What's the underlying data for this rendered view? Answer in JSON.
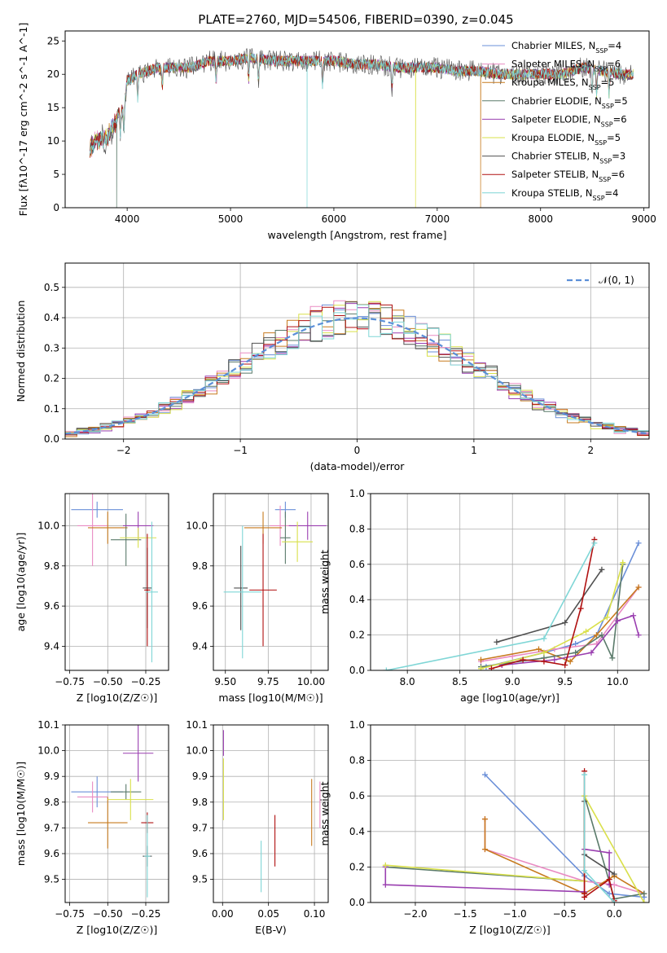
{
  "figure": {
    "title": "PLATE=2760, MJD=54506, FIBERID=0390, z=0.045"
  },
  "series_names": [
    "Chabrier MILES, N$_{SSP}$=4",
    "Salpeter MILES, N$_{SSP}$=6",
    "Kroupa MILES, N$_{SSP}$=5",
    "Chabrier ELODIE, N$_{SSP}$=5",
    "Salpeter ELODIE, N$_{SSP}$=6",
    "Kroupa ELODIE, N$_{SSP}$=5",
    "Chabrier STELIB, N$_{SSP}$=3",
    "Salpeter STELIB, N$_{SSP}$=6",
    "Kroupa STELIB, N$_{SSP}$=4"
  ],
  "colors": [
    "#6a8fd8",
    "#e98bc3",
    "#c77a1e",
    "#5a7a6a",
    "#9a3fb0",
    "#d9e04a",
    "#505050",
    "#b01010",
    "#7fd6d6"
  ],
  "chart_data": [
    {
      "id": "spectrum",
      "type": "line",
      "xlabel": "wavelength [Angstrom, rest frame]",
      "ylabel": "Flux [f$_\\lambda$10$^{-17}$ erg cm$^{-2}$ s$^{-1}$ A$^{-1}$]",
      "xlim": [
        3400,
        9050
      ],
      "ylim": [
        0,
        26.5
      ],
      "xticks": [
        4000,
        5000,
        6000,
        7000,
        8000,
        9000
      ],
      "yticks": [
        0,
        5,
        10,
        15,
        20,
        25
      ],
      "legend": "top-right",
      "grid": false,
      "continuum": {
        "x": [
          3640,
          3700,
          3800,
          3900,
          3970,
          4000,
          4050,
          4100,
          4200,
          4300,
          4400,
          4500,
          4600,
          4700,
          4800,
          4900,
          5000,
          5200,
          5400,
          5600,
          5800,
          6000,
          6200,
          6400,
          6600,
          6800,
          7000,
          7200,
          7400,
          7600,
          7800,
          8000,
          8200,
          8400,
          8600,
          8800,
          8900
        ],
        "y": [
          10,
          11,
          11.5,
          14,
          15,
          19,
          19.5,
          20,
          20.5,
          21,
          21,
          21,
          21,
          21.5,
          22,
          22,
          22,
          22.5,
          22,
          22,
          22,
          22,
          21.5,
          21.5,
          21,
          21,
          21,
          20.5,
          20.5,
          20,
          20,
          20,
          20,
          21,
          20.5,
          20,
          20
        ]
      },
      "absorption_lines": [
        3934,
        3969,
        4102,
        4340,
        4861,
        5175,
        5270,
        5890,
        6563,
        8498,
        8542,
        8662
      ],
      "dropouts": [
        {
          "x": 3900,
          "series": 3,
          "to": 0
        },
        {
          "x": 5740,
          "series": 8,
          "to": 0
        },
        {
          "x": 6790,
          "series": 5,
          "to": 0
        },
        {
          "x": 7420,
          "series": 2,
          "to": 0
        }
      ]
    },
    {
      "id": "residuals",
      "type": "histogram",
      "xlabel": "(data-model)/error",
      "ylabel": "Normed distribution",
      "xlim": [
        -2.5,
        2.5
      ],
      "ylim": [
        0,
        0.58
      ],
      "xticks": [
        -2,
        -1,
        0,
        1,
        2
      ],
      "yticks": [
        0,
        0.1,
        0.2,
        0.3,
        0.4,
        0.5
      ],
      "grid": true,
      "legend": "top-right",
      "normal_label": "$\\mathcal{N}(0, 1)$",
      "bin_width": 0.1,
      "bin_start": -2.5,
      "wiggle_seeds": [
        3,
        7,
        11,
        5,
        13,
        17,
        2,
        19,
        23
      ]
    },
    {
      "id": "age_vs_Z",
      "type": "errorbar",
      "xlabel": "Z [log$_{10}$(Z/Z$_\\odot$)]",
      "ylabel": "age  [log$_{10}$(age/yr)]",
      "xlim": [
        -0.78,
        -0.1
      ],
      "ylim": [
        9.28,
        10.16
      ],
      "xticks": [
        -0.75,
        -0.5,
        -0.25
      ],
      "yticks": [
        9.4,
        9.6,
        9.8,
        10.0
      ],
      "grid": true,
      "points": [
        {
          "s": 0,
          "x": -0.57,
          "y": 10.08,
          "xerr": 0.17,
          "yerr": 0.04
        },
        {
          "s": 1,
          "x": -0.6,
          "y": 10.0,
          "xerr": 0.1,
          "yerr": 0.2
        },
        {
          "s": 2,
          "x": -0.5,
          "y": 9.99,
          "xerr": 0.13,
          "yerr": 0.08
        },
        {
          "s": 3,
          "x": -0.38,
          "y": 9.93,
          "xerr": 0.1,
          "yerr": 0.13
        },
        {
          "s": 4,
          "x": -0.3,
          "y": 10.0,
          "xerr": 0.1,
          "yerr": 0.07
        },
        {
          "s": 5,
          "x": -0.3,
          "y": 9.94,
          "xerr": 0.12,
          "yerr": 0.05
        },
        {
          "s": 6,
          "x": -0.24,
          "y": 9.69,
          "xerr": 0.03,
          "yerr": 0.2
        },
        {
          "s": 7,
          "x": -0.24,
          "y": 9.68,
          "xerr": 0.02,
          "yerr": 0.28
        },
        {
          "s": 8,
          "x": -0.21,
          "y": 9.67,
          "xerr": 0.04,
          "yerr": 0.35
        }
      ]
    },
    {
      "id": "age_vs_mass",
      "type": "errorbar",
      "xlabel": "mass [log$_{10}$(M/M$_\\odot$)]",
      "ylabel": "",
      "xlim": [
        9.43,
        10.1
      ],
      "ylim": [
        9.28,
        10.16
      ],
      "xticks": [
        9.5,
        9.75,
        10.0
      ],
      "yticks": [
        9.4,
        9.6,
        9.8,
        10.0
      ],
      "grid": true,
      "points": [
        {
          "s": 0,
          "x": 9.85,
          "y": 10.08,
          "xerr": 0.06,
          "yerr": 0.04
        },
        {
          "s": 1,
          "x": 9.82,
          "y": 10.0,
          "xerr": 0.06,
          "yerr": 0.1
        },
        {
          "s": 2,
          "x": 9.72,
          "y": 9.99,
          "xerr": 0.11,
          "yerr": 0.08
        },
        {
          "s": 3,
          "x": 9.85,
          "y": 9.94,
          "xerr": 0.03,
          "yerr": 0.13
        },
        {
          "s": 4,
          "x": 9.98,
          "y": 10.0,
          "xerr": 0.11,
          "yerr": 0.07
        },
        {
          "s": 5,
          "x": 9.92,
          "y": 9.92,
          "xerr": 0.09,
          "yerr": 0.1
        },
        {
          "s": 6,
          "x": 9.59,
          "y": 9.69,
          "xerr": 0.04,
          "yerr": 0.21
        },
        {
          "s": 7,
          "x": 9.72,
          "y": 9.68,
          "xerr": 0.08,
          "yerr": 0.28
        },
        {
          "s": 8,
          "x": 9.6,
          "y": 9.67,
          "xerr": 0.11,
          "yerr": 0.33
        }
      ]
    },
    {
      "id": "mass_weight_vs_age",
      "type": "line",
      "xlabel": "age  [log$_{10}$(age/yr)]",
      "ylabel": "mass weight",
      "xlim": [
        7.65,
        10.3
      ],
      "ylim": [
        0,
        1.0
      ],
      "xticks": [
        8.0,
        8.5,
        9.0,
        9.5,
        10.0
      ],
      "yticks": [
        0,
        0.2,
        0.4,
        0.6,
        0.8,
        1.0
      ],
      "grid": true,
      "series": [
        {
          "s": 0,
          "x": [
            8.75,
            9.3,
            9.6,
            9.8,
            10.2
          ],
          "y": [
            0.02,
            0.1,
            0.15,
            0.2,
            0.72
          ]
        },
        {
          "s": 1,
          "x": [
            8.7,
            9.0,
            9.4,
            9.8,
            10.2
          ],
          "y": [
            0.05,
            0.08,
            0.12,
            0.15,
            0.47
          ]
        },
        {
          "s": 2,
          "x": [
            8.7,
            9.25,
            9.55,
            9.8,
            10.2
          ],
          "y": [
            0.06,
            0.12,
            0.05,
            0.2,
            0.47
          ]
        },
        {
          "s": 3,
          "x": [
            8.7,
            9.3,
            9.6,
            9.85,
            9.95,
            10.05
          ],
          "y": [
            0.02,
            0.07,
            0.1,
            0.2,
            0.07,
            0.6
          ]
        },
        {
          "s": 4,
          "x": [
            8.9,
            9.4,
            9.75,
            10.0,
            10.15,
            10.2
          ],
          "y": [
            0.03,
            0.06,
            0.1,
            0.28,
            0.31,
            0.2
          ]
        },
        {
          "s": 5,
          "x": [
            8.7,
            9.3,
            9.7,
            9.9,
            10.05
          ],
          "y": [
            0.01,
            0.1,
            0.22,
            0.3,
            0.61
          ]
        },
        {
          "s": 6,
          "x": [
            8.85,
            9.5,
            9.85
          ],
          "y": [
            0.16,
            0.27,
            0.57
          ]
        },
        {
          "s": 7,
          "x": [
            8.8,
            9.1,
            9.3,
            9.5,
            9.65,
            9.78
          ],
          "y": [
            0.01,
            0.06,
            0.05,
            0.03,
            0.35,
            0.74
          ]
        },
        {
          "s": 8,
          "x": [
            7.8,
            9.3,
            9.78
          ],
          "y": [
            0.0,
            0.18,
            0.72
          ]
        }
      ]
    },
    {
      "id": "mass_vs_Z",
      "type": "errorbar",
      "xlabel": "Z [log$_{10}$(Z/Z$_\\odot$)]",
      "ylabel": "mass [log$_{10}$(M/M$_\\odot$)]",
      "xlim": [
        -0.78,
        -0.1
      ],
      "ylim": [
        9.41,
        10.1
      ],
      "xticks": [
        -0.75,
        -0.5,
        -0.25
      ],
      "yticks": [
        9.5,
        9.6,
        9.7,
        9.8,
        9.9,
        10.0,
        10.1
      ],
      "grid": true,
      "points": [
        {
          "s": 0,
          "x": -0.57,
          "y": 9.84,
          "xerr": 0.17,
          "yerr": 0.06
        },
        {
          "s": 1,
          "x": -0.6,
          "y": 9.82,
          "xerr": 0.1,
          "yerr": 0.06
        },
        {
          "s": 2,
          "x": -0.5,
          "y": 9.72,
          "xerr": 0.13,
          "yerr": 0.1
        },
        {
          "s": 3,
          "x": -0.38,
          "y": 9.84,
          "xerr": 0.1,
          "yerr": 0.03
        },
        {
          "s": 4,
          "x": -0.3,
          "y": 9.99,
          "xerr": 0.1,
          "yerr": 0.11
        },
        {
          "s": 5,
          "x": -0.35,
          "y": 9.81,
          "xerr": 0.15,
          "yerr": 0.08
        },
        {
          "s": 6,
          "x": -0.24,
          "y": 9.59,
          "xerr": 0.03,
          "yerr": 0.04
        },
        {
          "s": 7,
          "x": -0.24,
          "y": 9.72,
          "xerr": 0.04,
          "yerr": 0.04
        },
        {
          "s": 8,
          "x": -0.24,
          "y": 9.59,
          "xerr": 0.02,
          "yerr": 0.16
        }
      ]
    },
    {
      "id": "mass_vs_ebv",
      "type": "errorbar",
      "xlabel": "E(B-V)",
      "ylabel": "",
      "xlim": [
        -0.01,
        0.115
      ],
      "ylim": [
        9.41,
        10.1
      ],
      "xticks": [
        0.0,
        0.05,
        0.1
      ],
      "yticks": [
        9.5,
        9.6,
        9.7,
        9.8,
        9.9,
        10.0,
        10.1
      ],
      "grid": true,
      "points": [
        {
          "s": 2,
          "x": 0.097,
          "y": 9.76,
          "xerr": 0.0,
          "yerr": 0.13
        },
        {
          "s": 1,
          "x": 0.106,
          "y": 9.79,
          "xerr": 0.0,
          "yerr": 0.09
        },
        {
          "s": 7,
          "x": 0.057,
          "y": 9.65,
          "xerr": 0.0,
          "yerr": 0.1
        },
        {
          "s": 8,
          "x": 0.042,
          "y": 9.55,
          "xerr": 0.0,
          "yerr": 0.1
        },
        {
          "s": 4,
          "x": 0.001,
          "y": 10.03,
          "xerr": 0.0,
          "yerr": 0.05
        },
        {
          "s": 5,
          "x": 0.001,
          "y": 9.85,
          "xerr": 0.0,
          "yerr": 0.12
        }
      ]
    },
    {
      "id": "mass_weight_vs_Z",
      "type": "line",
      "xlabel": "Z [log$_{10}$(Z/Z$_\\odot$)]",
      "ylabel": "mass weight",
      "xlim": [
        -2.45,
        0.35
      ],
      "ylim": [
        0,
        1.0
      ],
      "xticks": [
        -2.0,
        -1.5,
        -1.0,
        -0.5,
        0.0
      ],
      "yticks": [
        0,
        0.2,
        0.4,
        0.6,
        0.8,
        1.0
      ],
      "grid": true,
      "series": [
        {
          "s": 0,
          "x": [
            -1.3,
            -0.3,
            -0.05,
            0.3
          ],
          "y": [
            0.72,
            0.15,
            0.05,
            0.03
          ]
        },
        {
          "s": 1,
          "x": [
            -1.3,
            -1.3,
            -0.3,
            0.0,
            0.3
          ],
          "y": [
            0.47,
            0.3,
            0.12,
            0.1,
            0.05
          ]
        },
        {
          "s": 2,
          "x": [
            -1.3,
            -1.3,
            -0.3,
            0.0,
            0.3
          ],
          "y": [
            0.47,
            0.3,
            0.05,
            0.15,
            0.05
          ]
        },
        {
          "s": 3,
          "x": [
            -2.3,
            -0.3,
            -0.3,
            0.0,
            0.3
          ],
          "y": [
            0.2,
            0.12,
            0.6,
            0.02,
            0.05
          ]
        },
        {
          "s": 4,
          "x": [
            -2.3,
            -2.3,
            -0.3,
            -0.3,
            -0.05,
            -0.05
          ],
          "y": [
            0.2,
            0.1,
            0.06,
            0.3,
            0.28,
            0.1
          ]
        },
        {
          "s": 5,
          "x": [
            -2.3,
            -0.3,
            -0.3,
            0.3
          ],
          "y": [
            0.21,
            0.12,
            0.6,
            0.0
          ]
        },
        {
          "s": 6,
          "x": [
            -0.3,
            -0.3,
            0.0
          ],
          "y": [
            0.57,
            0.27,
            0.16
          ]
        },
        {
          "s": 7,
          "x": [
            -0.3,
            -0.3,
            -0.3,
            -0.05,
            0.0
          ],
          "y": [
            0.74,
            0.05,
            0.03,
            0.13,
            0.01
          ]
        },
        {
          "s": 8,
          "x": [
            -0.3,
            -0.3,
            0.0
          ],
          "y": [
            0.72,
            0.18,
            0.0
          ]
        }
      ]
    }
  ]
}
